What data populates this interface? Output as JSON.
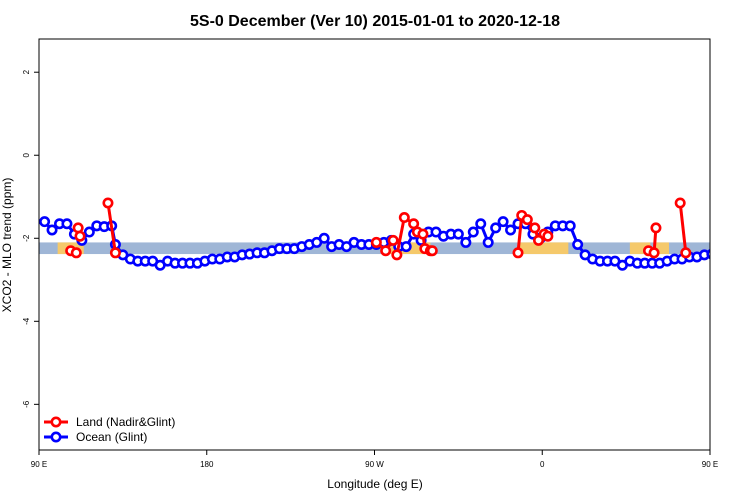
{
  "chart_data": {
    "type": "line",
    "title": "5S-0 December (Ver 10)   2015-01-01 to 2020-12-18",
    "xlabel": "Longitude (deg E)",
    "ylabel": "XCO2 - MLO trend (ppm)",
    "xlim": [
      90,
      450
    ],
    "ylim": [
      -7.1,
      2.8
    ],
    "x_ticks": [
      90,
      180,
      270,
      360,
      450,
      540
    ],
    "x_tick_labels": [
      "90 E",
      "180",
      "90 W",
      "0",
      "90 E",
      "180"
    ],
    "y_ticks": [
      -6,
      -4,
      -2,
      0,
      2
    ],
    "y_tick_labels": [
      "-6",
      "-4",
      "-2",
      "0",
      "2"
    ],
    "grid": false,
    "legend_position": "bottom-left",
    "colors": {
      "land": "#ff0000",
      "ocean": "#0000ff",
      "band": "#9fb6d6",
      "land_band": "#f5c96b"
    },
    "band": {
      "y_min": -2.38,
      "y_max": -2.1
    },
    "land_band_segments": [
      [
        100,
        114
      ],
      [
        274,
        300
      ],
      [
        347,
        374
      ],
      [
        407,
        418
      ],
      [
        421,
        428
      ]
    ],
    "series": [
      {
        "name": "Land (Nadir&Glint)",
        "color": "#ff0000",
        "segments": [
          {
            "x": [
              107,
              110
            ],
            "y": [
              -2.3,
              -2.35
            ]
          },
          {
            "x": [
              111,
              112
            ],
            "y": [
              -1.75,
              -1.95
            ]
          },
          {
            "x": [
              127,
              131
            ],
            "y": [
              -1.15,
              -2.35
            ]
          },
          {
            "x": [
              271,
              276,
              280
            ],
            "y": [
              -2.1,
              -2.3,
              -2.05
            ]
          },
          {
            "x": [
              282,
              286,
              291,
              293,
              296,
              297,
              300,
              301
            ],
            "y": [
              -2.4,
              -1.5,
              -1.65,
              -1.85,
              -1.9,
              -2.25,
              -2.3,
              -2.3
            ]
          },
          {
            "x": [
              347,
              349,
              352,
              356,
              358,
              361,
              363
            ],
            "y": [
              -2.35,
              -1.45,
              -1.55,
              -1.75,
              -2.05,
              -1.9,
              -1.95
            ]
          },
          {
            "x": [
              417,
              420,
              421
            ],
            "y": [
              -2.3,
              -2.35,
              -1.75
            ]
          },
          {
            "x": [
              434,
              437
            ],
            "y": [
              -1.15,
              -2.35
            ]
          }
        ]
      },
      {
        "name": "Ocean (Glint)",
        "color": "#0000ff",
        "x": [
          93,
          97,
          101,
          105,
          109,
          113,
          117,
          121,
          125,
          129,
          131,
          135,
          139,
          143,
          147,
          151,
          155,
          159,
          163,
          167,
          171,
          175,
          179,
          183,
          187,
          191,
          195,
          199,
          203,
          207,
          211,
          215,
          219,
          223,
          227,
          231,
          235,
          239,
          243,
          247,
          251,
          255,
          259,
          263,
          267,
          271,
          275,
          279,
          283,
          287,
          291,
          295,
          299,
          303,
          307,
          311,
          315,
          319,
          323,
          327,
          331,
          335,
          339,
          343,
          347,
          351,
          355,
          359,
          363,
          367,
          371,
          375,
          379,
          383,
          387,
          391,
          395,
          399,
          403,
          407,
          411,
          415,
          419,
          423,
          427,
          431,
          435,
          439,
          443,
          447,
          451,
          455,
          459,
          463,
          467,
          471,
          475
        ],
        "y": [
          -1.6,
          -1.8,
          -1.65,
          -1.65,
          -1.9,
          -2.05,
          -1.85,
          -1.7,
          -1.72,
          -1.7,
          -2.15,
          -2.4,
          -2.5,
          -2.55,
          -2.55,
          -2.55,
          -2.65,
          -2.55,
          -2.6,
          -2.6,
          -2.6,
          -2.6,
          -2.55,
          -2.5,
          -2.5,
          -2.45,
          -2.45,
          -2.4,
          -2.38,
          -2.35,
          -2.35,
          -2.3,
          -2.25,
          -2.25,
          -2.25,
          -2.2,
          -2.15,
          -2.1,
          -2.0,
          -2.2,
          -2.15,
          -2.2,
          -2.1,
          -2.15,
          -2.15,
          -2.15,
          -2.1,
          -2.05,
          -2.2,
          -2.2,
          -1.9,
          -2.05,
          -1.85,
          -1.85,
          -1.95,
          -1.9,
          -1.9,
          -2.1,
          -1.85,
          -1.65,
          -2.1,
          -1.75,
          -1.6,
          -1.8,
          -1.65,
          -1.65,
          -1.9,
          -2.0,
          -1.85,
          -1.7,
          -1.7,
          -1.7,
          -2.15,
          -2.4,
          -2.5,
          -2.55,
          -2.55,
          -2.55,
          -2.65,
          -2.55,
          -2.6,
          -2.6,
          -2.6,
          -2.6,
          -2.55,
          -2.5,
          -2.5,
          -2.45,
          -2.45,
          -2.4,
          -2.38,
          -2.35,
          -2.35,
          -2.3,
          -2.25,
          -2.25,
          -2.25
        ]
      }
    ]
  }
}
